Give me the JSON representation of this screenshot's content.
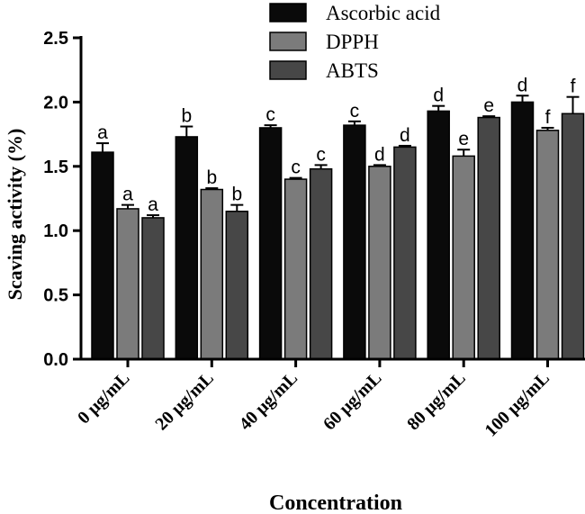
{
  "chart_data": {
    "type": "bar",
    "title": "",
    "xlabel": "Concentration",
    "ylabel": "Scaving activity (%)",
    "ylim": [
      0,
      2.5
    ],
    "yticks": [
      "0.0",
      "0.5",
      "1.0",
      "1.5",
      "2.0",
      "2.5"
    ],
    "categories": [
      "0 μg/mL",
      "20 μg/mL",
      "40 μg/mL",
      "60 μg/mL",
      "80 μg/mL",
      "100 μg/mL"
    ],
    "series": [
      {
        "name": "Ascorbic acid",
        "color": "#0a0a0a",
        "values": [
          1.61,
          1.73,
          1.8,
          1.82,
          1.93,
          2.0
        ],
        "errors": [
          0.07,
          0.08,
          0.02,
          0.03,
          0.04,
          0.05
        ],
        "labels": [
          "a",
          "b",
          "c",
          "c",
          "d",
          "d"
        ]
      },
      {
        "name": "DPPH",
        "color": "#7b7b7b",
        "values": [
          1.17,
          1.32,
          1.4,
          1.5,
          1.58,
          1.78
        ],
        "errors": [
          0.03,
          0.01,
          0.01,
          0.01,
          0.05,
          0.02
        ],
        "labels": [
          "a",
          "b",
          "c",
          "d",
          "e",
          "f"
        ]
      },
      {
        "name": "ABTS",
        "color": "#474747",
        "values": [
          1.1,
          1.15,
          1.48,
          1.65,
          1.88,
          1.91
        ],
        "errors": [
          0.02,
          0.05,
          0.03,
          0.01,
          0.01,
          0.13
        ],
        "labels": [
          "a",
          "b",
          "c",
          "d",
          "e",
          "f"
        ]
      }
    ],
    "legend_position": "top-right",
    "grid": false
  }
}
